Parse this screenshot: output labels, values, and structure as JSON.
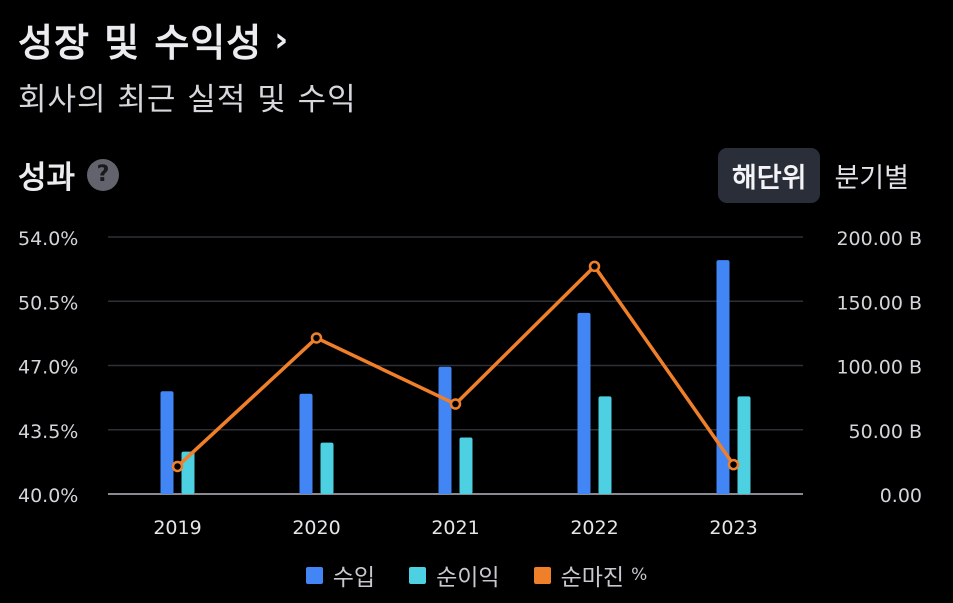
{
  "header": {
    "title": "성장 및 수익성",
    "chevron": "›",
    "subtitle": "회사의 최근 실적 및 수익"
  },
  "section": {
    "title": "성과",
    "help_icon": "?"
  },
  "tabs": [
    {
      "label": "해단위",
      "active": true
    },
    {
      "label": "분기별",
      "active": false
    }
  ],
  "chart_data": {
    "type": "bar",
    "categories": [
      "2019",
      "2020",
      "2021",
      "2022",
      "2023"
    ],
    "series": [
      {
        "name": "수입",
        "axis": "right",
        "color": "#4285f4",
        "values": [
          80,
          78,
          99,
          141,
          182
        ]
      },
      {
        "name": "순이익",
        "axis": "right",
        "color": "#4dd0e1",
        "values": [
          33,
          40,
          44,
          76,
          76
        ]
      }
    ],
    "line_series": {
      "name": "순마진",
      "unit": "%",
      "axis": "left",
      "color": "#f07f2a",
      "values": [
        41.5,
        48.5,
        44.9,
        52.4,
        41.6
      ]
    },
    "left_axis": {
      "ticks": [
        "54.0%",
        "50.5%",
        "47.0%",
        "43.5%",
        "40.0%"
      ],
      "min": 40.0,
      "max": 54.0
    },
    "right_axis": {
      "ticks": [
        "200.00 B",
        "150.00 B",
        "100.00 B",
        "50.00 B",
        "0.00"
      ],
      "min": 0,
      "max": 200
    },
    "legend": [
      {
        "label": "수입",
        "color": "#4285f4"
      },
      {
        "label": "순이익",
        "color": "#4dd0e1"
      },
      {
        "label": "순마진",
        "unit": "%",
        "color": "#f07f2a"
      }
    ]
  }
}
